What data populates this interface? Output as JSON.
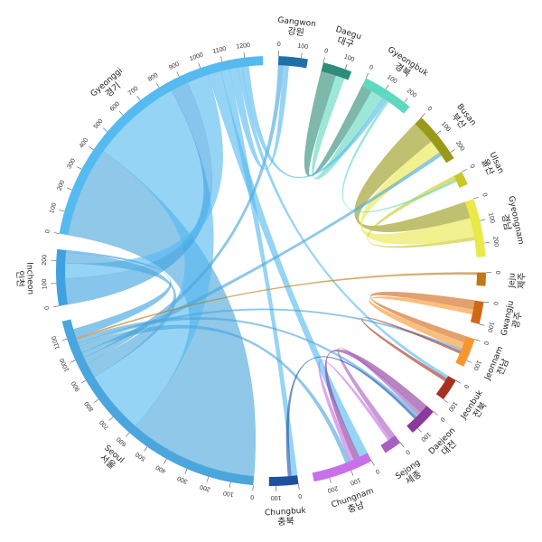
{
  "chart_data": {
    "type": "chord",
    "title": "",
    "tick_step": 100,
    "regions": [
      {
        "name": "Gangwon",
        "name_ko": "강원",
        "size": 130,
        "color": "#1f6fa8"
      },
      {
        "name": "Daegu",
        "name_ko": "대구",
        "size": 130,
        "color": "#2e8c78"
      },
      {
        "name": "Gyeongbuk",
        "name_ko": "경북",
        "size": 230,
        "color": "#5fd8c0"
      },
      {
        "name": "Busan",
        "name_ko": "부산",
        "size": 230,
        "color": "#9a9a1a"
      },
      {
        "name": "Ulsan",
        "name_ko": "울산",
        "size": 60,
        "color": "#c8c82a"
      },
      {
        "name": "Gyeongnam",
        "name_ko": "경남",
        "size": 260,
        "color": "#e9e94a"
      },
      {
        "name": "Jeju",
        "name_ko": "제주",
        "size": 60,
        "color": "#c07818"
      },
      {
        "name": "Gwangju",
        "name_ko": "광주",
        "size": 100,
        "color": "#d06818"
      },
      {
        "name": "Jeonnam",
        "name_ko": "전남",
        "size": 130,
        "color": "#f7962e"
      },
      {
        "name": "Jeonbuk",
        "name_ko": "전북",
        "size": 100,
        "color": "#a8301e"
      },
      {
        "name": "Daejeon",
        "name_ko": "대전",
        "size": 130,
        "color": "#8a3a9a"
      },
      {
        "name": "Sejong",
        "name_ko": "세종",
        "size": 80,
        "color": "#a860c0"
      },
      {
        "name": "Chungnam",
        "name_ko": "충남",
        "size": 270,
        "color": "#c870e8"
      },
      {
        "name": "Chungbuk",
        "name_ko": "충북",
        "size": 130,
        "color": "#1e50a0"
      },
      {
        "name": "Seoul",
        "name_ko": "서울",
        "size": 1180,
        "color": "#4aa6dc"
      },
      {
        "name": "Incheon",
        "name_ko": "인천",
        "size": 250,
        "color": "#3ea2e0"
      },
      {
        "name": "Gyeonggi",
        "name_ko": "경기",
        "size": 1280,
        "color": "#55baf0"
      }
    ],
    "flows": [
      {
        "from": "Seoul",
        "to": "Gyeonggi",
        "value": 600
      },
      {
        "from": "Gyeonggi",
        "to": "Seoul",
        "value": 420
      },
      {
        "from": "Incheon",
        "to": "Gyeonggi",
        "value": 120
      },
      {
        "from": "Gyeonggi",
        "to": "Incheon",
        "value": 100
      },
      {
        "from": "Seoul",
        "to": "Incheon",
        "value": 70
      },
      {
        "from": "Gyeonggi",
        "to": "Chungnam",
        "value": 60
      },
      {
        "from": "Gyeonggi",
        "to": "Chungbuk",
        "value": 40
      },
      {
        "from": "Seoul",
        "to": "Gangwon",
        "value": 30
      },
      {
        "from": "Gyeonggi",
        "to": "Gangwon",
        "value": 40
      },
      {
        "from": "Busan",
        "to": "Gyeongnam",
        "value": 110
      },
      {
        "from": "Gyeongnam",
        "to": "Busan",
        "value": 90
      },
      {
        "from": "Daegu",
        "to": "Gyeongbuk",
        "value": 70
      },
      {
        "from": "Gyeongbuk",
        "to": "Daegu",
        "value": 60
      },
      {
        "from": "Ulsan",
        "to": "Gyeongnam",
        "value": 20
      },
      {
        "from": "Gwangju",
        "to": "Jeonnam",
        "value": 40
      },
      {
        "from": "Jeonnam",
        "to": "Gwangju",
        "value": 35
      },
      {
        "from": "Daejeon",
        "to": "Chungnam",
        "value": 40
      },
      {
        "from": "Sejong",
        "to": "Daejeon",
        "value": 25
      },
      {
        "from": "Chungnam",
        "to": "Sejong",
        "value": 20
      },
      {
        "from": "Seoul",
        "to": "Busan",
        "value": 25
      },
      {
        "from": "Seoul",
        "to": "Chungnam",
        "value": 30
      },
      {
        "from": "Gyeonggi",
        "to": "Jeonbuk",
        "value": 20
      },
      {
        "from": "Seoul",
        "to": "Jeonnam",
        "value": 15
      },
      {
        "from": "Gyeonggi",
        "to": "Gyeongbuk",
        "value": 30
      },
      {
        "from": "Seoul",
        "to": "Daejeon",
        "value": 20
      },
      {
        "from": "Jeju",
        "to": "Seoul",
        "value": 10
      },
      {
        "from": "Jeonbuk",
        "to": "Jeonnam",
        "value": 15
      },
      {
        "from": "Chungbuk",
        "to": "Daejeon",
        "value": 15
      },
      {
        "from": "Gyeongbuk",
        "to": "Ulsan",
        "value": 12
      },
      {
        "from": "Incheon",
        "to": "Seoul",
        "value": 60
      }
    ]
  }
}
